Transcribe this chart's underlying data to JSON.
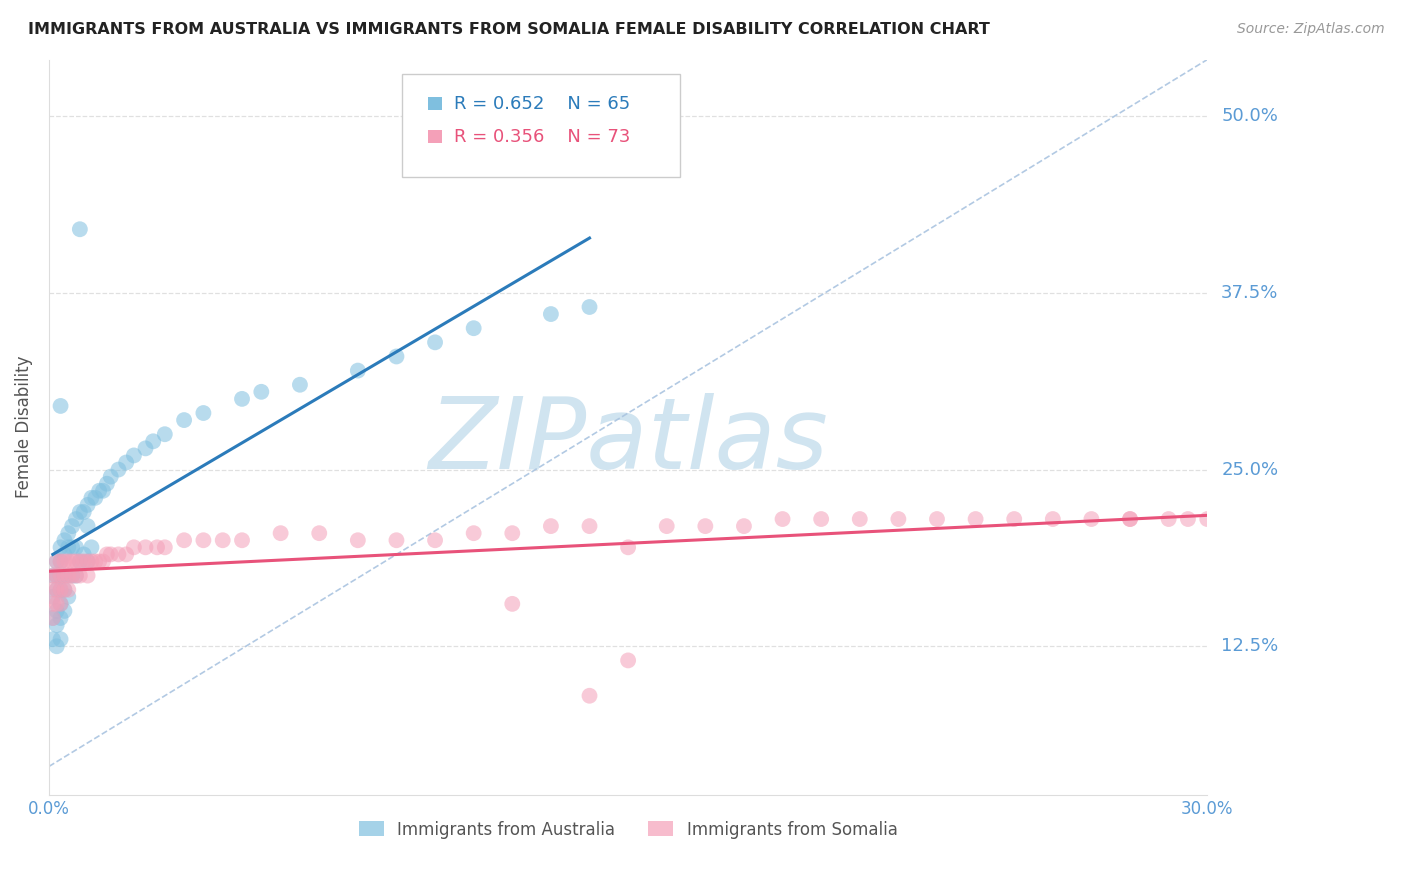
{
  "title": "IMMIGRANTS FROM AUSTRALIA VS IMMIGRANTS FROM SOMALIA FEMALE DISABILITY CORRELATION CHART",
  "source": "Source: ZipAtlas.com",
  "ylabel": "Female Disability",
  "ytick_labels": [
    "50.0%",
    "37.5%",
    "25.0%",
    "12.5%"
  ],
  "ytick_values": [
    0.5,
    0.375,
    0.25,
    0.125
  ],
  "xmin": 0.0,
  "xmax": 0.3,
  "ymin": 0.02,
  "ymax": 0.54,
  "legend_r_aus": "0.652",
  "legend_n_aus": "65",
  "legend_r_som": "0.356",
  "legend_n_som": "73",
  "color_australia": "#7fbfdf",
  "color_somalia": "#f4a0b8",
  "color_reg_australia": "#2b7bba",
  "color_reg_somalia": "#e8527a",
  "color_diagonal": "#aac4e0",
  "color_axis": "#5b9bd5",
  "color_title": "#222222",
  "color_source": "#999999",
  "watermark_color": "#d0e4f0",
  "background_color": "#ffffff",
  "grid_color": "#e0e0e0",
  "aus_x": [
    0.001,
    0.001,
    0.001,
    0.001,
    0.002,
    0.002,
    0.002,
    0.002,
    0.002,
    0.002,
    0.003,
    0.003,
    0.003,
    0.003,
    0.003,
    0.003,
    0.003,
    0.004,
    0.004,
    0.004,
    0.004,
    0.004,
    0.005,
    0.005,
    0.005,
    0.005,
    0.006,
    0.006,
    0.006,
    0.007,
    0.007,
    0.007,
    0.008,
    0.008,
    0.009,
    0.009,
    0.01,
    0.01,
    0.01,
    0.011,
    0.011,
    0.012,
    0.013,
    0.014,
    0.015,
    0.016,
    0.018,
    0.02,
    0.022,
    0.025,
    0.027,
    0.03,
    0.035,
    0.04,
    0.05,
    0.055,
    0.065,
    0.08,
    0.09,
    0.1,
    0.11,
    0.13,
    0.14,
    0.003,
    0.008
  ],
  "aus_y": [
    0.175,
    0.16,
    0.145,
    0.13,
    0.185,
    0.175,
    0.165,
    0.15,
    0.14,
    0.125,
    0.195,
    0.185,
    0.175,
    0.165,
    0.155,
    0.145,
    0.13,
    0.2,
    0.19,
    0.175,
    0.165,
    0.15,
    0.205,
    0.195,
    0.175,
    0.16,
    0.21,
    0.195,
    0.175,
    0.215,
    0.195,
    0.175,
    0.22,
    0.185,
    0.22,
    0.19,
    0.225,
    0.21,
    0.185,
    0.23,
    0.195,
    0.23,
    0.235,
    0.235,
    0.24,
    0.245,
    0.25,
    0.255,
    0.26,
    0.265,
    0.27,
    0.275,
    0.285,
    0.29,
    0.3,
    0.305,
    0.31,
    0.32,
    0.33,
    0.34,
    0.35,
    0.36,
    0.365,
    0.295,
    0.42
  ],
  "som_x": [
    0.001,
    0.001,
    0.001,
    0.001,
    0.002,
    0.002,
    0.002,
    0.002,
    0.003,
    0.003,
    0.003,
    0.003,
    0.004,
    0.004,
    0.004,
    0.005,
    0.005,
    0.005,
    0.006,
    0.006,
    0.007,
    0.007,
    0.008,
    0.008,
    0.009,
    0.01,
    0.01,
    0.011,
    0.012,
    0.013,
    0.014,
    0.015,
    0.016,
    0.018,
    0.02,
    0.022,
    0.025,
    0.028,
    0.03,
    0.035,
    0.04,
    0.045,
    0.05,
    0.06,
    0.07,
    0.08,
    0.09,
    0.1,
    0.11,
    0.12,
    0.13,
    0.14,
    0.15,
    0.16,
    0.17,
    0.18,
    0.19,
    0.2,
    0.21,
    0.22,
    0.23,
    0.24,
    0.25,
    0.26,
    0.27,
    0.28,
    0.29,
    0.295,
    0.15,
    0.12,
    0.14,
    0.28,
    0.3
  ],
  "som_y": [
    0.175,
    0.165,
    0.155,
    0.145,
    0.185,
    0.175,
    0.165,
    0.155,
    0.185,
    0.175,
    0.165,
    0.155,
    0.185,
    0.175,
    0.165,
    0.185,
    0.175,
    0.165,
    0.185,
    0.175,
    0.185,
    0.175,
    0.185,
    0.175,
    0.185,
    0.185,
    0.175,
    0.185,
    0.185,
    0.185,
    0.185,
    0.19,
    0.19,
    0.19,
    0.19,
    0.195,
    0.195,
    0.195,
    0.195,
    0.2,
    0.2,
    0.2,
    0.2,
    0.205,
    0.205,
    0.2,
    0.2,
    0.2,
    0.205,
    0.205,
    0.21,
    0.21,
    0.195,
    0.21,
    0.21,
    0.21,
    0.215,
    0.215,
    0.215,
    0.215,
    0.215,
    0.215,
    0.215,
    0.215,
    0.215,
    0.215,
    0.215,
    0.215,
    0.115,
    0.155,
    0.09,
    0.215,
    0.215
  ]
}
